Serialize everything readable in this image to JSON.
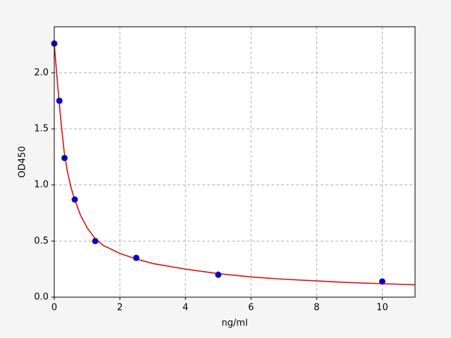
{
  "chart_data": {
    "type": "scatter",
    "xlabel": "ng/ml",
    "ylabel": "OD450",
    "xlim": [
      0,
      11
    ],
    "ylim": [
      0,
      2.41
    ],
    "xticks": [
      0,
      2,
      4,
      6,
      8,
      10
    ],
    "yticks": [
      {
        "value": 0,
        "label": "0.0"
      },
      0.5,
      {
        "value": 1,
        "label": "1.0"
      },
      1.5,
      {
        "value": 2,
        "label": "2.0"
      }
    ],
    "grid": true,
    "series": [
      {
        "mode": "markers",
        "color": "#0000cc",
        "edgecolor": "#5a2d82",
        "x": [
          0,
          0.156,
          0.3125,
          0.625,
          1.25,
          2.5,
          5,
          10
        ],
        "values": [
          2.26,
          1.75,
          1.24,
          0.87,
          0.5,
          0.35,
          0.2,
          0.14
        ]
      },
      {
        "mode": "line",
        "color": "#dd1111",
        "x": [
          0,
          0.1,
          0.2,
          0.3,
          0.4,
          0.5,
          0.6,
          0.8,
          1,
          1.25,
          1.5,
          2,
          2.5,
          3,
          4,
          5,
          6,
          7,
          8,
          9,
          10,
          11
        ],
        "values": [
          2.26,
          1.9,
          1.58,
          1.3,
          1.12,
          0.99,
          0.89,
          0.73,
          0.62,
          0.52,
          0.46,
          0.39,
          0.34,
          0.3,
          0.25,
          0.21,
          0.18,
          0.16,
          0.145,
          0.13,
          0.12,
          0.11
        ]
      }
    ]
  }
}
